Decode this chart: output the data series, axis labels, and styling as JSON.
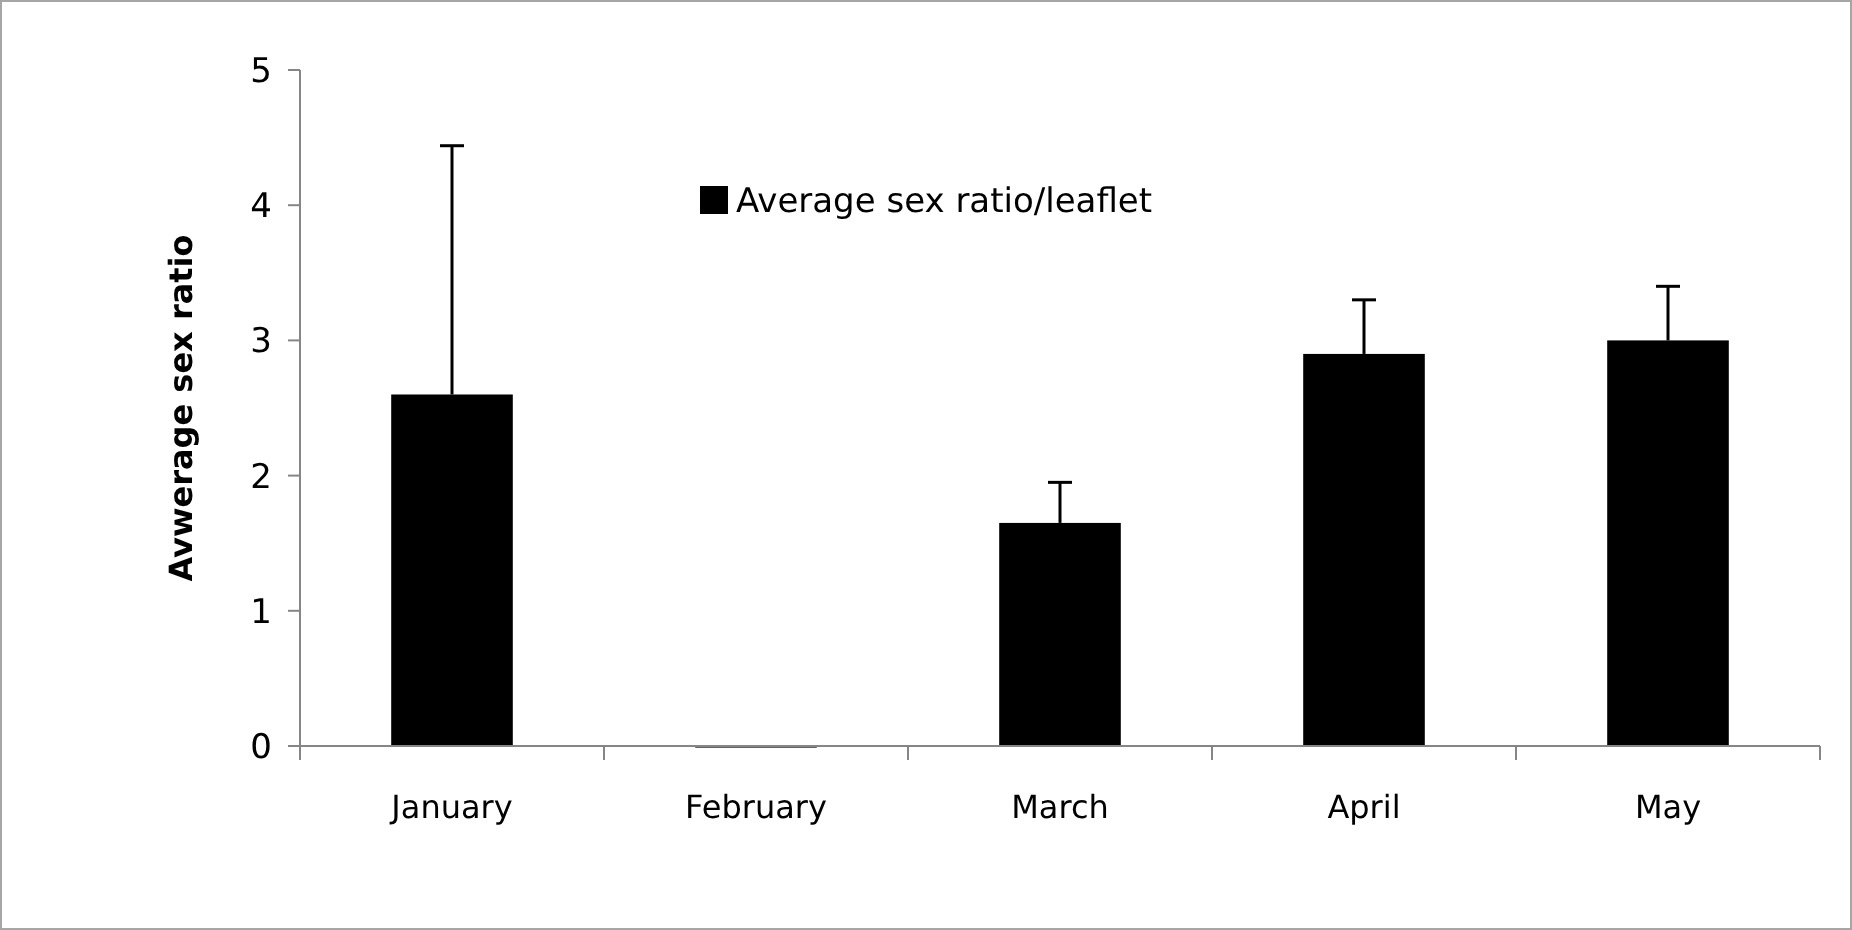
{
  "chart_data": {
    "type": "bar",
    "ylabel": "Avwerage sex ratio",
    "categories": [
      "January",
      "February",
      "March",
      "April",
      "May"
    ],
    "series": [
      {
        "name": "Average sex ratio/leaflet",
        "color": "#000000",
        "values": [
          2.6,
          0,
          1.65,
          2.9,
          3.0
        ],
        "errors": [
          1.84,
          null,
          0.3,
          0.4,
          0.4
        ]
      }
    ],
    "ylim": [
      0,
      5
    ],
    "yticks": [
      0,
      1,
      2,
      3,
      4,
      5
    ],
    "grid": false,
    "legend": "top"
  }
}
